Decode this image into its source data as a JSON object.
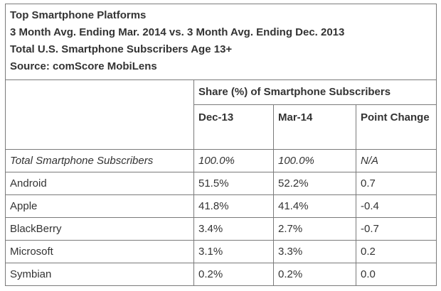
{
  "header": {
    "title": "Top Smartphone Platforms",
    "subtitle_period": "3 Month Avg. Ending Mar. 2014 vs. 3 Month Avg. Ending Dec. 2013",
    "subtitle_population": "Total U.S. Smartphone Subscribers Age 13+",
    "source": "Source: comScore MobiLens"
  },
  "table": {
    "group_header": "Share (%) of Smartphone Subscribers",
    "columns": [
      "Dec-13",
      "Mar-14",
      "Point Change"
    ],
    "rows": [
      {
        "label": "Total Smartphone Subscribers",
        "dec13": "100.0%",
        "mar14": "100.0%",
        "change": "N/A"
      },
      {
        "label": "Android",
        "dec13": "51.5%",
        "mar14": "52.2%",
        "change": "0.7"
      },
      {
        "label": "Apple",
        "dec13": "41.8%",
        "mar14": "41.4%",
        "change": "-0.4"
      },
      {
        "label": "BlackBerry",
        "dec13": "3.4%",
        "mar14": "2.7%",
        "change": "-0.7"
      },
      {
        "label": "Microsoft",
        "dec13": "3.1%",
        "mar14": "3.3%",
        "change": "0.2"
      },
      {
        "label": "Symbian",
        "dec13": "0.2%",
        "mar14": "0.2%",
        "change": "0.0"
      }
    ]
  }
}
